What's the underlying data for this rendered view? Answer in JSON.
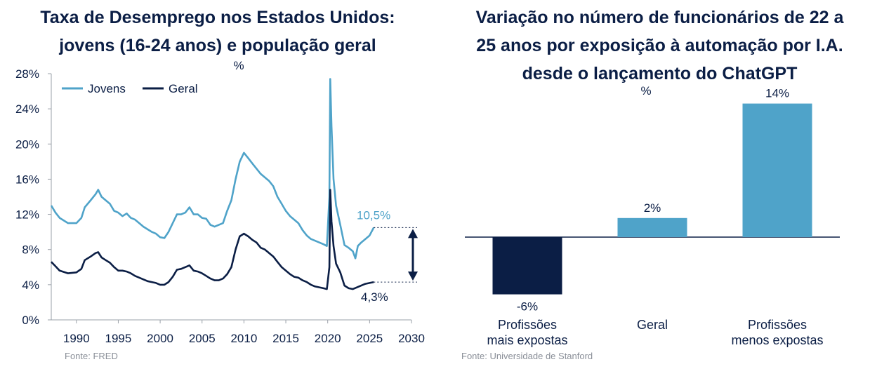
{
  "chart_data": [
    {
      "type": "line",
      "title_line1": "Taxa de Desemprego nos Estados Unidos:",
      "title_line2": "jovens (16-24 anos) e população geral",
      "unit": "%",
      "source": "Fonte: FRED",
      "xlim": [
        1987,
        2030
      ],
      "ylim": [
        0,
        28
      ],
      "x_ticks": [
        "1990",
        "1995",
        "2000",
        "2005",
        "2010",
        "2015",
        "2020",
        "2025",
        "2030"
      ],
      "x_tick_values": [
        1990,
        1995,
        2000,
        2005,
        2010,
        2015,
        2020,
        2025,
        2030
      ],
      "y_ticks": [
        "0%",
        "4%",
        "8%",
        "12%",
        "16%",
        "20%",
        "24%",
        "28%"
      ],
      "y_tick_values": [
        0,
        4,
        8,
        12,
        16,
        20,
        24,
        28
      ],
      "legend_position": "top-left",
      "series": [
        {
          "name": "Jovens",
          "color": "#4fa3c9",
          "end_label": "10,5%",
          "points": [
            [
              1987,
              13.0
            ],
            [
              1987.5,
              12.2
            ],
            [
              1988,
              11.6
            ],
            [
              1989,
              11.0
            ],
            [
              1990,
              11.0
            ],
            [
              1990.6,
              11.6
            ],
            [
              1991,
              12.8
            ],
            [
              1991.7,
              13.6
            ],
            [
              1992.3,
              14.3
            ],
            [
              1992.6,
              14.8
            ],
            [
              1993,
              14.0
            ],
            [
              1993.5,
              13.6
            ],
            [
              1994,
              13.2
            ],
            [
              1994.5,
              12.4
            ],
            [
              1995,
              12.2
            ],
            [
              1995.5,
              11.8
            ],
            [
              1996,
              12.1
            ],
            [
              1996.5,
              11.6
            ],
            [
              1997,
              11.4
            ],
            [
              1997.5,
              11.0
            ],
            [
              1998,
              10.6
            ],
            [
              1998.5,
              10.3
            ],
            [
              1999,
              10.0
            ],
            [
              1999.5,
              9.8
            ],
            [
              2000,
              9.4
            ],
            [
              2000.5,
              9.3
            ],
            [
              2001,
              10.0
            ],
            [
              2001.5,
              11.0
            ],
            [
              2002,
              12.0
            ],
            [
              2002.5,
              12.0
            ],
            [
              2003,
              12.2
            ],
            [
              2003.5,
              12.8
            ],
            [
              2004,
              12.0
            ],
            [
              2004.5,
              12.0
            ],
            [
              2005,
              11.6
            ],
            [
              2005.5,
              11.5
            ],
            [
              2006,
              10.8
            ],
            [
              2006.5,
              10.6
            ],
            [
              2007,
              10.8
            ],
            [
              2007.5,
              11.0
            ],
            [
              2008,
              12.4
            ],
            [
              2008.5,
              13.6
            ],
            [
              2009,
              16.0
            ],
            [
              2009.5,
              18.0
            ],
            [
              2010,
              19.0
            ],
            [
              2010.5,
              18.4
            ],
            [
              2011,
              17.8
            ],
            [
              2011.5,
              17.2
            ],
            [
              2012,
              16.6
            ],
            [
              2012.5,
              16.2
            ],
            [
              2013,
              15.8
            ],
            [
              2013.5,
              15.2
            ],
            [
              2014,
              14.0
            ],
            [
              2014.5,
              13.2
            ],
            [
              2015,
              12.4
            ],
            [
              2015.5,
              11.8
            ],
            [
              2016,
              11.4
            ],
            [
              2016.5,
              11.0
            ],
            [
              2017,
              10.2
            ],
            [
              2017.5,
              9.6
            ],
            [
              2018,
              9.2
            ],
            [
              2018.5,
              9.0
            ],
            [
              2019,
              8.8
            ],
            [
              2019.5,
              8.6
            ],
            [
              2019.9,
              8.4
            ],
            [
              2020.2,
              14.0
            ],
            [
              2020.3,
              27.4
            ],
            [
              2020.45,
              22.0
            ],
            [
              2020.7,
              16.0
            ],
            [
              2021,
              13.0
            ],
            [
              2021.5,
              10.8
            ],
            [
              2022,
              8.5
            ],
            [
              2022.5,
              8.2
            ],
            [
              2023,
              7.8
            ],
            [
              2023.3,
              7.0
            ],
            [
              2023.6,
              8.4
            ],
            [
              2024,
              8.8
            ],
            [
              2024.5,
              9.2
            ],
            [
              2025,
              9.6
            ],
            [
              2025.5,
              10.5
            ]
          ]
        },
        {
          "name": "Geral",
          "color": "#0b1e45",
          "end_label": "4,3%",
          "points": [
            [
              1987,
              6.6
            ],
            [
              1987.5,
              6.1
            ],
            [
              1988,
              5.6
            ],
            [
              1989,
              5.3
            ],
            [
              1990,
              5.4
            ],
            [
              1990.6,
              5.8
            ],
            [
              1991,
              6.8
            ],
            [
              1991.7,
              7.2
            ],
            [
              1992.3,
              7.6
            ],
            [
              1992.6,
              7.7
            ],
            [
              1993,
              7.1
            ],
            [
              1993.5,
              6.8
            ],
            [
              1994,
              6.5
            ],
            [
              1994.5,
              6.0
            ],
            [
              1995,
              5.6
            ],
            [
              1995.5,
              5.6
            ],
            [
              1996,
              5.5
            ],
            [
              1996.5,
              5.3
            ],
            [
              1997,
              5.0
            ],
            [
              1997.5,
              4.8
            ],
            [
              1998,
              4.6
            ],
            [
              1998.5,
              4.4
            ],
            [
              1999,
              4.3
            ],
            [
              1999.5,
              4.2
            ],
            [
              2000,
              4.0
            ],
            [
              2000.5,
              4.0
            ],
            [
              2001,
              4.3
            ],
            [
              2001.5,
              4.9
            ],
            [
              2002,
              5.7
            ],
            [
              2002.5,
              5.8
            ],
            [
              2003,
              6.0
            ],
            [
              2003.5,
              6.2
            ],
            [
              2004,
              5.6
            ],
            [
              2004.5,
              5.5
            ],
            [
              2005,
              5.3
            ],
            [
              2005.5,
              5.0
            ],
            [
              2006,
              4.7
            ],
            [
              2006.5,
              4.5
            ],
            [
              2007,
              4.5
            ],
            [
              2007.5,
              4.7
            ],
            [
              2008,
              5.2
            ],
            [
              2008.5,
              6.0
            ],
            [
              2009,
              8.0
            ],
            [
              2009.5,
              9.5
            ],
            [
              2010,
              9.8
            ],
            [
              2010.5,
              9.5
            ],
            [
              2011,
              9.1
            ],
            [
              2011.5,
              8.8
            ],
            [
              2012,
              8.2
            ],
            [
              2012.5,
              8.0
            ],
            [
              2013,
              7.6
            ],
            [
              2013.5,
              7.2
            ],
            [
              2014,
              6.6
            ],
            [
              2014.5,
              6.0
            ],
            [
              2015,
              5.6
            ],
            [
              2015.5,
              5.2
            ],
            [
              2016,
              4.9
            ],
            [
              2016.5,
              4.8
            ],
            [
              2017,
              4.5
            ],
            [
              2017.5,
              4.3
            ],
            [
              2018,
              4.0
            ],
            [
              2018.5,
              3.8
            ],
            [
              2019,
              3.7
            ],
            [
              2019.5,
              3.6
            ],
            [
              2019.9,
              3.5
            ],
            [
              2020.2,
              6.0
            ],
            [
              2020.3,
              14.8
            ],
            [
              2020.45,
              11.2
            ],
            [
              2020.7,
              8.4
            ],
            [
              2021,
              6.4
            ],
            [
              2021.5,
              5.4
            ],
            [
              2022,
              3.9
            ],
            [
              2022.5,
              3.6
            ],
            [
              2023,
              3.5
            ],
            [
              2023.5,
              3.7
            ],
            [
              2024,
              3.9
            ],
            [
              2024.5,
              4.1
            ],
            [
              2025,
              4.2
            ],
            [
              2025.5,
              4.3
            ]
          ]
        }
      ]
    },
    {
      "type": "bar",
      "title_line1": "Variação no número de funcionários de 22 a",
      "title_line2": "25 anos por exposição à automação por I.A.",
      "title_line3": "desde o lançamento do ChatGPT",
      "unit": "%",
      "source": "Fonte: Universidade de Stanford",
      "categories": [
        [
          "Profissões",
          "mais expostas"
        ],
        [
          "Geral"
        ],
        [
          "Profissões",
          "menos expostas"
        ]
      ],
      "values": [
        -6,
        2,
        14
      ],
      "value_labels": [
        "-6%",
        "2%",
        "14%"
      ],
      "colors": [
        "#0b1e45",
        "#4fa3c9",
        "#4fa3c9"
      ]
    }
  ]
}
